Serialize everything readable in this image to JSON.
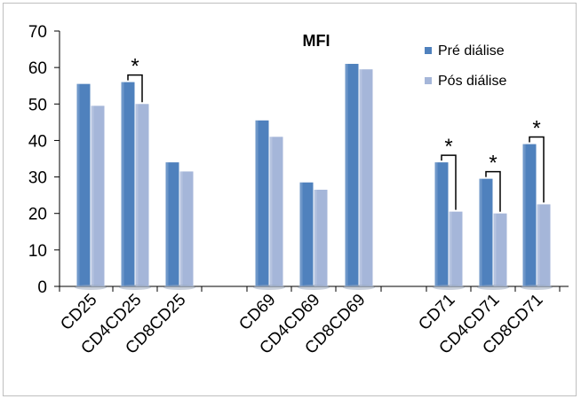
{
  "chart_data": {
    "type": "bar",
    "title": "MFI",
    "categories": [
      "CD25",
      "CD4CD25",
      "CD8CD25",
      "CD69",
      "CD4CD69",
      "CD8CD69",
      "CD71",
      "CD4CD71",
      "CD8CD71"
    ],
    "series": [
      {
        "name": "Pré diálise",
        "values": [
          55.5,
          56,
          34,
          45.5,
          28.5,
          61,
          34,
          29.5,
          39
        ],
        "color": "#4f81bd"
      },
      {
        "name": "Pós diálise",
        "values": [
          49.5,
          50,
          31.5,
          41,
          26.5,
          59.5,
          20.5,
          20,
          22.5
        ],
        "color": "#a5b6d9"
      }
    ],
    "ylim": [
      0,
      70
    ],
    "yticks": [
      "0",
      "10",
      "20",
      "30",
      "40",
      "50",
      "60",
      "70"
    ],
    "significance": [
      "",
      "*",
      "",
      "",
      "",
      "",
      "*",
      "*",
      "*"
    ],
    "grid": false,
    "legend_position": "top-right"
  }
}
